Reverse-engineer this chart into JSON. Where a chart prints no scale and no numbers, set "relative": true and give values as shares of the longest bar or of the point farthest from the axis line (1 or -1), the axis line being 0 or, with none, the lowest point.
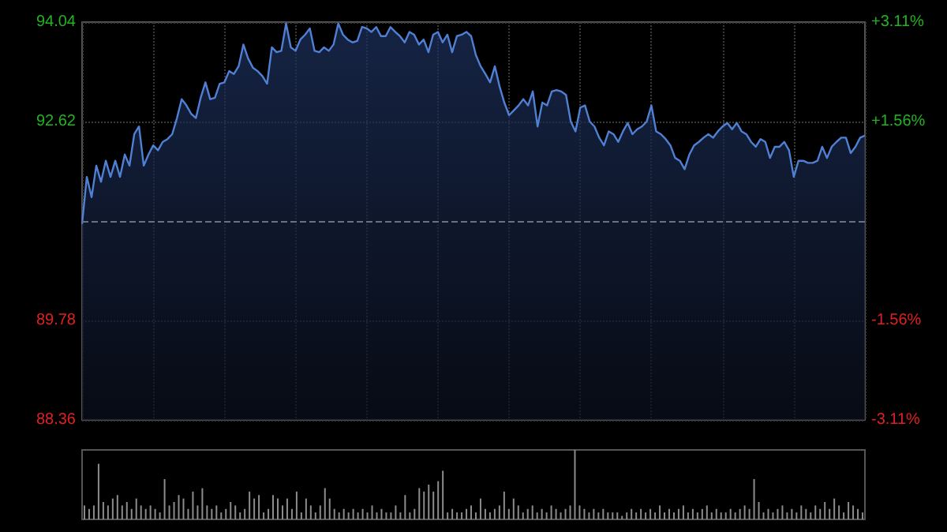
{
  "chart_data": [
    {
      "type": "area",
      "color": "#4f80d4",
      "categories": [
        null,
        null,
        null,
        null,
        null,
        null,
        null,
        null,
        null,
        null,
        null,
        null,
        null,
        null,
        null,
        null,
        null,
        null,
        null,
        null,
        null,
        null,
        null,
        null,
        null,
        null,
        null,
        null,
        null,
        null,
        null,
        null,
        null,
        null,
        null,
        null,
        null,
        null,
        null,
        null,
        null,
        null,
        null,
        null,
        null,
        null,
        null,
        null,
        null,
        null,
        null,
        null,
        null,
        null,
        null,
        null,
        null,
        null,
        null,
        null,
        null,
        null,
        null,
        null,
        null,
        null,
        null,
        null,
        null,
        null,
        null,
        null,
        null,
        null,
        null,
        null,
        null,
        null,
        null,
        null,
        null,
        null,
        null,
        null,
        null,
        null,
        null,
        null,
        null,
        null,
        null,
        null,
        null,
        null,
        null,
        null,
        null,
        null,
        null,
        null,
        null,
        null,
        null,
        null,
        null,
        null,
        null,
        null,
        null,
        null,
        null,
        null,
        null,
        null,
        null,
        null,
        null,
        null,
        null,
        null,
        null,
        null,
        null,
        null,
        null,
        null,
        null,
        null,
        null,
        null,
        null,
        null,
        null,
        null,
        null,
        null,
        null,
        null,
        null,
        null,
        null,
        null,
        null,
        null,
        null,
        null,
        null,
        null,
        null,
        null,
        null,
        null,
        null,
        null,
        null,
        null,
        null,
        null,
        null,
        null,
        null,
        null,
        null,
        null,
        null,
        null
      ],
      "values": [
        91.16,
        91.83,
        91.54,
        91.99,
        91.76,
        92.06,
        91.83,
        92.06,
        91.83,
        92.15,
        91.99,
        92.44,
        92.55,
        91.99,
        92.15,
        92.28,
        92.21,
        92.33,
        92.37,
        92.44,
        92.67,
        92.94,
        92.85,
        92.73,
        92.67,
        92.96,
        93.18,
        92.94,
        92.96,
        93.16,
        93.18,
        93.34,
        93.3,
        93.41,
        93.72,
        93.52,
        93.39,
        93.34,
        93.27,
        93.16,
        93.68,
        93.61,
        93.63,
        94.02,
        93.68,
        93.63,
        93.79,
        93.86,
        93.95,
        93.63,
        93.61,
        93.68,
        93.63,
        93.72,
        94.02,
        93.86,
        93.79,
        93.75,
        93.77,
        93.97,
        93.95,
        93.9,
        93.97,
        93.84,
        93.84,
        93.97,
        93.9,
        93.84,
        93.75,
        93.9,
        93.86,
        93.72,
        93.79,
        93.61,
        93.86,
        93.9,
        93.75,
        93.86,
        93.61,
        93.84,
        93.86,
        93.9,
        93.84,
        93.57,
        93.41,
        93.3,
        93.18,
        93.41,
        93.12,
        92.89,
        92.71,
        92.78,
        92.85,
        92.94,
        92.85,
        93.05,
        92.55,
        92.89,
        92.85,
        93.05,
        93.07,
        93.05,
        93.0,
        92.62,
        92.48,
        92.82,
        92.85,
        92.62,
        92.55,
        92.39,
        92.28,
        92.48,
        92.44,
        92.33,
        92.48,
        92.6,
        92.44,
        92.51,
        92.55,
        92.62,
        92.85,
        92.48,
        92.44,
        92.37,
        92.28,
        92.1,
        92.06,
        91.94,
        92.15,
        92.28,
        92.33,
        92.39,
        92.44,
        92.39,
        92.48,
        92.55,
        92.6,
        92.51,
        92.6,
        92.48,
        92.44,
        92.33,
        92.26,
        92.37,
        92.33,
        92.1,
        92.26,
        92.26,
        92.33,
        92.21,
        91.83,
        92.06,
        92.06,
        92.03,
        92.03,
        92.06,
        92.26,
        92.1,
        92.26,
        92.33,
        92.39,
        92.39,
        92.17,
        92.26,
        92.39,
        92.42
      ],
      "ylim": [
        88.36,
        94.04
      ],
      "yticks": [
        88.36,
        {
          "value": 89.78,
          "label": "89.78"
        },
        {
          "value": 92.62,
          "label": "92.62"
        },
        94.04
      ],
      "y2lim": [
        -3.11,
        3.11
      ],
      "y2ticks": [
        {
          "value": -3.11,
          "label": "-3.11%"
        },
        {
          "value": -1.56,
          "label": "-1.56%"
        },
        {
          "value": 1.56,
          "label": "+1.56%"
        },
        {
          "value": 3.11,
          "label": "+3.11%"
        }
      ],
      "ref_lines": [
        {
          "axis": "y",
          "value": 91.2,
          "color": "#6a7280",
          "line_style": "dashed"
        }
      ],
      "grid": true,
      "marker": "none",
      "line_style": "solid"
    },
    {
      "type": "bar",
      "relative": true,
      "color": "#8c8c8c",
      "categories": [
        null,
        null,
        null,
        null,
        null,
        null,
        null,
        null,
        null,
        null,
        null,
        null,
        null,
        null,
        null,
        null,
        null,
        null,
        null,
        null,
        null,
        null,
        null,
        null,
        null,
        null,
        null,
        null,
        null,
        null,
        null,
        null,
        null,
        null,
        null,
        null,
        null,
        null,
        null,
        null,
        null,
        null,
        null,
        null,
        null,
        null,
        null,
        null,
        null,
        null,
        null,
        null,
        null,
        null,
        null,
        null,
        null,
        null,
        null,
        null,
        null,
        null,
        null,
        null,
        null,
        null,
        null,
        null,
        null,
        null,
        null,
        null,
        null,
        null,
        null,
        null,
        null,
        null,
        null,
        null,
        null,
        null,
        null,
        null,
        null,
        null,
        null,
        null,
        null,
        null,
        null,
        null,
        null,
        null,
        null,
        null,
        null,
        null,
        null,
        null,
        null,
        null,
        null,
        null,
        null,
        null,
        null,
        null,
        null,
        null,
        null,
        null,
        null,
        null,
        null,
        null,
        null,
        null,
        null,
        null,
        null,
        null,
        null,
        null,
        null,
        null,
        null,
        null,
        null,
        null,
        null,
        null,
        null,
        null,
        null,
        null,
        null,
        null,
        null,
        null,
        null,
        null,
        null,
        null,
        null,
        null,
        null,
        null,
        null,
        null,
        null,
        null,
        null,
        null,
        null,
        null,
        null,
        null,
        null,
        null,
        null,
        null,
        null,
        null,
        null,
        null
      ],
      "values": [
        0.2,
        0.15,
        0.2,
        0.8,
        0.25,
        0.2,
        0.3,
        0.35,
        0.2,
        0.25,
        0.15,
        0.3,
        0.2,
        0.15,
        0.2,
        0.15,
        0.1,
        0.58,
        0.2,
        0.25,
        0.35,
        0.3,
        0.15,
        0.4,
        0.2,
        0.45,
        0.2,
        0.15,
        0.2,
        0.1,
        0.15,
        0.25,
        0.2,
        0.1,
        0.15,
        0.4,
        0.3,
        0.35,
        0.1,
        0.15,
        0.35,
        0.3,
        0.2,
        0.3,
        0.15,
        0.4,
        0.1,
        0.3,
        0.2,
        0.1,
        0.2,
        0.45,
        0.3,
        0.15,
        0.1,
        0.15,
        0.1,
        0.15,
        0.1,
        0.15,
        0.1,
        0.2,
        0.1,
        0.15,
        0.1,
        0.1,
        0.2,
        0.1,
        0.35,
        0.1,
        0.15,
        0.45,
        0.4,
        0.5,
        0.4,
        0.55,
        0.7,
        0.1,
        0.15,
        0.1,
        0.1,
        0.15,
        0.2,
        0.1,
        0.3,
        0.15,
        0.1,
        0.15,
        0.2,
        0.4,
        0.15,
        0.3,
        0.2,
        0.1,
        0.15,
        0.2,
        0.1,
        0.15,
        0.1,
        0.2,
        0.15,
        0.1,
        0.15,
        0.2,
        1,
        0.2,
        0.15,
        0.1,
        0.15,
        0.1,
        0.15,
        0.1,
        0.1,
        0.1,
        0.05,
        0.1,
        0.15,
        0.1,
        0.15,
        0.1,
        0.15,
        0.1,
        0.2,
        0.1,
        0.15,
        0.1,
        0.15,
        0.2,
        0.1,
        0.15,
        0.1,
        0.15,
        0.2,
        0.1,
        0.15,
        0.1,
        0.1,
        0.15,
        0.1,
        0.15,
        0.2,
        0.15,
        0.58,
        0.25,
        0.1,
        0.15,
        0.1,
        0.15,
        0.2,
        0.1,
        0.15,
        0.1,
        0.2,
        0.15,
        0.1,
        0.2,
        0.15,
        0.25,
        0.15,
        0.3,
        0.2,
        0.1,
        0.25,
        0.2,
        0.15,
        0.1
      ]
    }
  ]
}
